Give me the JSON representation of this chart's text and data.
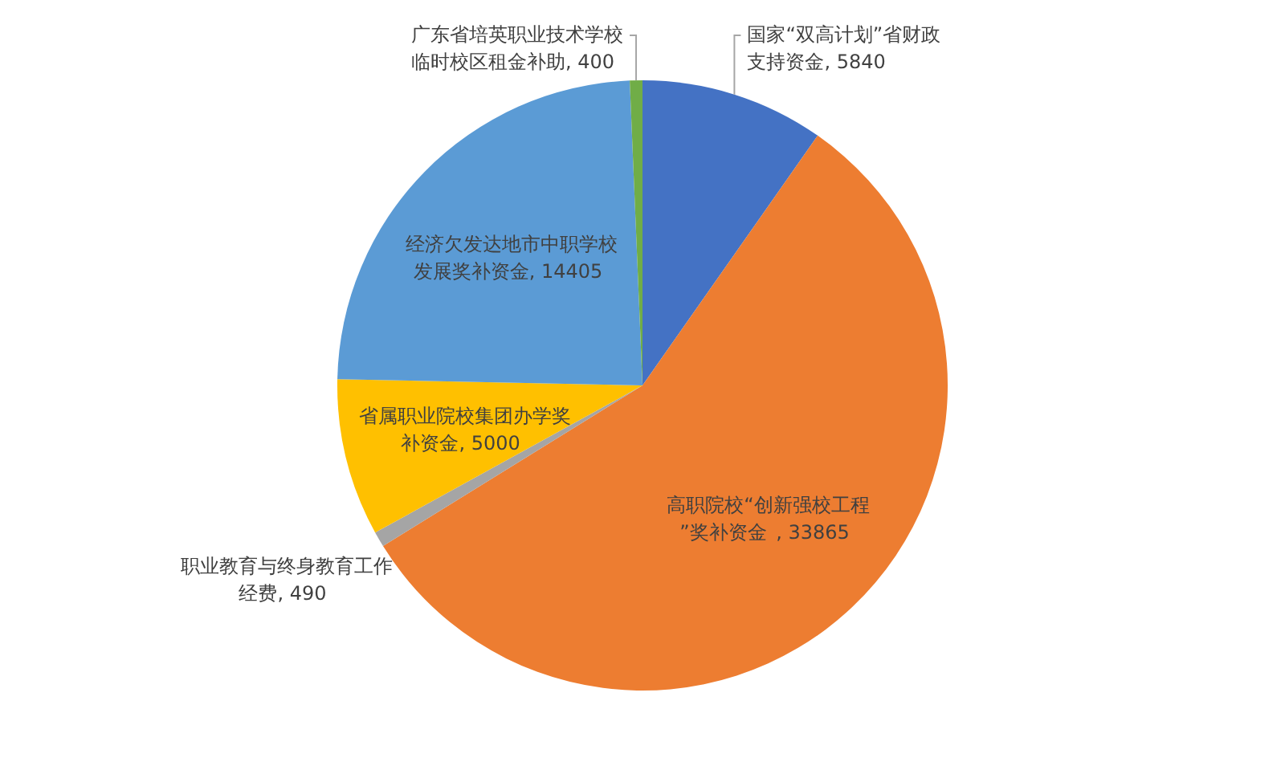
{
  "chart_data": {
    "type": "pie",
    "categories": [
      "国家“双高计划”省财政支持资金",
      "高职院校“创新强校工程”奖补资金",
      "职业教育与终身教育工作经费",
      "省属职业院校集团办学奖补资金",
      "经济欠发达地市中职学校发展奖补资金",
      "广东省培英职业技术学校临时校区租金补助"
    ],
    "values": [
      5840,
      33865,
      490,
      5000,
      14405,
      400
    ],
    "value_labels": [
      ", 5840",
      ", 33865",
      ", 490",
      ", 5000",
      ", 14405",
      ", 400"
    ],
    "colors": [
      "#4472c4",
      "#ed7d31",
      "#a5a5a5",
      "#ffc000",
      "#5b9bd5",
      "#70ad47"
    ]
  }
}
